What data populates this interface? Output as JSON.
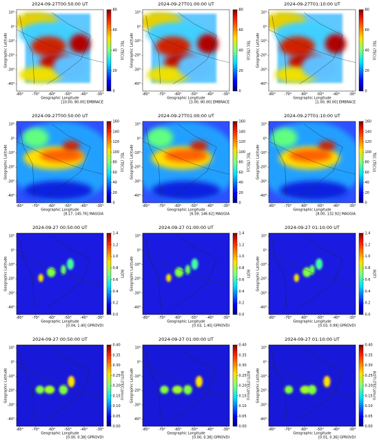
{
  "xlabel": "Geographic Longitude",
  "ylabel": "Geographic Latitude",
  "xticks": [
    {
      "value": -80,
      "label": "-80°"
    },
    {
      "value": -70,
      "label": "-70°"
    },
    {
      "value": -60,
      "label": "-60°"
    },
    {
      "value": -50,
      "label": "-50°"
    },
    {
      "value": -40,
      "label": "-40°"
    },
    {
      "value": -30,
      "label": "-30°"
    }
  ],
  "yticks": [
    {
      "value": 10,
      "label": "10°"
    },
    {
      "value": 0,
      "label": "0°"
    },
    {
      "value": -10,
      "label": "-10°"
    },
    {
      "value": -20,
      "label": "-20°"
    },
    {
      "value": -30,
      "label": "-30°"
    },
    {
      "value": -40,
      "label": "-40°"
    }
  ],
  "rows": [
    {
      "cbar_label": "TEC (TECU)",
      "cbar_ticks": [
        0,
        20,
        40,
        60,
        80
      ],
      "panels": [
        {
          "title": "2024-09-27T00:50:00 UT",
          "annotation": "[10.00, 80.00] EMBRACE"
        },
        {
          "title": "2024-09-27T01:00:00 UT",
          "annotation": "[3.00, 80.00] EMBRACE"
        },
        {
          "title": "2024-09-27T01:10:00 UT",
          "annotation": "[1.00, 80.00] EMBRACE"
        }
      ]
    },
    {
      "cbar_label": "TEC (TECU)",
      "cbar_ticks": [
        0,
        20,
        40,
        60,
        80,
        100,
        120,
        140,
        160
      ],
      "panels": [
        {
          "title": "2024-09-27T00:50:00 UT",
          "annotation": "[8.17, 145.76] MAGGIA"
        },
        {
          "title": "2024-09-27T01:00:00 UT",
          "annotation": "[6.59, 146.62] MAGGIA"
        },
        {
          "title": "2024-09-27T01:10:00 UT",
          "annotation": "[8.00, 132.92] MAGGIA"
        }
      ]
    },
    {
      "cbar_label": "ROTI",
      "cbar_ticks": [
        {
          "value": 0,
          "label": "0.0"
        },
        0.2,
        0.4,
        0.6,
        0.8,
        {
          "value": 1,
          "label": "1.0"
        },
        1.2,
        1.4
      ],
      "panels": [
        {
          "title": "2024-09-27 00:50:00 UT",
          "annotation": "[0.04, 1.40] GPROVDI"
        },
        {
          "title": "2024-09-27 01:00:00 UT",
          "annotation": "[0.03, 1.40] GPROVDI"
        },
        {
          "title": "2024-09-27 01:10:00 UT",
          "annotation": "[0.03, 0.99] GPROVDI"
        }
      ]
    },
    {
      "cbar_label": "ROTI (TECU/min)",
      "cbar_ticks": [
        {
          "value": 0,
          "label": "0.00"
        },
        0.05,
        {
          "value": 0.1,
          "label": "0.10"
        },
        0.15,
        {
          "value": 0.2,
          "label": "0.20"
        },
        0.25,
        {
          "value": 0.3,
          "label": "0.30"
        },
        0.35,
        {
          "value": 0.4,
          "label": "0.40"
        }
      ],
      "panels": [
        {
          "title": "2024-09-27 00:50:00 UT",
          "annotation": "[0.00, 0.38] GPROVDI"
        },
        {
          "title": "2024-09-27 01:00:00 UT",
          "annotation": "[0.00, 0.38] GPROVDI"
        },
        {
          "title": "2024-09-27 01:10:00 UT",
          "annotation": "[0.01, 0.36] GPROVDI"
        }
      ]
    }
  ]
}
